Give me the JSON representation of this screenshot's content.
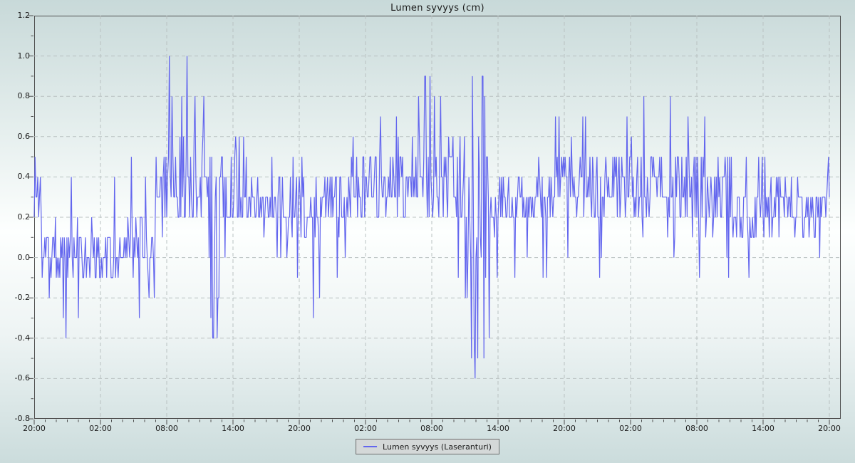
{
  "colors": {
    "line": "#6366ee",
    "grid": "#b9c1c1",
    "axis": "#4d4d4d",
    "text": "#1a1a1a",
    "legend_bg": "#d4d8d8",
    "legend_border": "#6e6e6e",
    "bg_top": "#c8d9d9",
    "bg_mid": "#fdfffe",
    "bg_bottom": "#cbdcdc"
  },
  "chart_data": {
    "type": "line",
    "title": "Lumen syvyys (cm)",
    "xlabel": "",
    "ylabel": "",
    "ylim": [
      -0.8,
      1.2
    ],
    "ytick_step": 0.2,
    "ytick_labels": [
      "1.2",
      "1.0",
      "0.8",
      "0.6",
      "0.4",
      "0.2",
      "0.0",
      "-0.2",
      "-0.4",
      "-0.6",
      "-0.8"
    ],
    "minor_ytick": 0.1,
    "x_total_hours": 72,
    "xtick_step_hours": 6,
    "minor_xtick_hours": 1,
    "xtick_labels": [
      "20:00",
      "02:00",
      "08:00",
      "14:00",
      "20:00",
      "02:00",
      "08:00",
      "14:00",
      "20:00",
      "02:00",
      "08:00",
      "14:00",
      "20:00"
    ],
    "grid": true,
    "legend_position": "bottom-center",
    "y_max_observed": 1.0,
    "y_min_observed": -0.6,
    "series": [
      {
        "name": "Lumen syvyys (Laseranturi)",
        "color": "#6366ee",
        "quantize_cm": 0.1,
        "sample_step_hours": 0.08,
        "seed": 1337,
        "segments": [
          [
            0.0,
            0.6,
            0.3,
            0.15,
            0.3,
            0.5,
            0.05,
            -0.1
          ],
          [
            0.6,
            11.0,
            0.04,
            0.14,
            0.04,
            0.45,
            0.06,
            -0.3
          ],
          [
            11.0,
            11.8,
            0.3,
            0.22,
            0.1,
            0.65,
            0.02,
            -0.1
          ],
          [
            11.8,
            14.5,
            0.38,
            0.2,
            0.16,
            0.95,
            0.04,
            -0.15
          ],
          [
            14.5,
            16.0,
            0.38,
            0.22,
            0.1,
            0.85,
            0.05,
            -0.1
          ],
          [
            16.0,
            16.9,
            0.12,
            0.28,
            0.05,
            0.55,
            0.22,
            -0.38
          ],
          [
            16.9,
            19.0,
            0.36,
            0.2,
            0.08,
            0.68,
            0.03,
            -0.05
          ],
          [
            19.0,
            24.0,
            0.26,
            0.13,
            0.05,
            0.58,
            0.04,
            -0.12
          ],
          [
            24.0,
            27.0,
            0.25,
            0.15,
            0.05,
            0.55,
            0.07,
            -0.27
          ],
          [
            27.0,
            30.0,
            0.3,
            0.16,
            0.05,
            0.6,
            0.04,
            -0.1
          ],
          [
            30.0,
            34.0,
            0.34,
            0.18,
            0.06,
            0.72,
            0.03,
            -0.1
          ],
          [
            34.0,
            36.5,
            0.4,
            0.2,
            0.08,
            0.88,
            0.04,
            -0.12
          ],
          [
            36.5,
            39.5,
            0.38,
            0.2,
            0.07,
            0.8,
            0.04,
            -0.18
          ],
          [
            39.5,
            41.2,
            0.18,
            0.38,
            0.1,
            0.88,
            0.16,
            -0.5
          ],
          [
            41.2,
            47.0,
            0.27,
            0.13,
            0.06,
            0.58,
            0.05,
            -0.15
          ],
          [
            47.0,
            54.0,
            0.37,
            0.16,
            0.07,
            0.72,
            0.04,
            -0.08
          ],
          [
            54.0,
            60.0,
            0.38,
            0.18,
            0.07,
            0.78,
            0.03,
            -0.02
          ],
          [
            60.0,
            63.5,
            0.34,
            0.2,
            0.05,
            0.7,
            0.05,
            -0.1
          ],
          [
            63.5,
            66.5,
            0.2,
            0.15,
            0.04,
            0.55,
            0.06,
            -0.13
          ],
          [
            66.5,
            72.01,
            0.25,
            0.13,
            0.05,
            0.5,
            0.03,
            -0.05
          ]
        ],
        "forced_points": [
          [
            0.05,
            0.5
          ],
          [
            0.3,
            0.4
          ],
          [
            2.85,
            -0.4
          ],
          [
            8.8,
            0.5
          ],
          [
            12.25,
            1.0
          ],
          [
            13.85,
            1.0
          ],
          [
            16.2,
            -0.4
          ],
          [
            16.55,
            -0.4
          ],
          [
            25.3,
            -0.3
          ],
          [
            28.9,
            0.6
          ],
          [
            35.4,
            0.9
          ],
          [
            35.85,
            0.9
          ],
          [
            39.65,
            0.9
          ],
          [
            39.95,
            -0.6
          ],
          [
            40.15,
            -0.5
          ],
          [
            40.6,
            0.9
          ],
          [
            47.5,
            0.7
          ],
          [
            55.2,
            0.8
          ],
          [
            57.6,
            0.8
          ],
          [
            62.9,
            -0.1
          ],
          [
            71.9,
            0.5
          ]
        ]
      }
    ]
  }
}
